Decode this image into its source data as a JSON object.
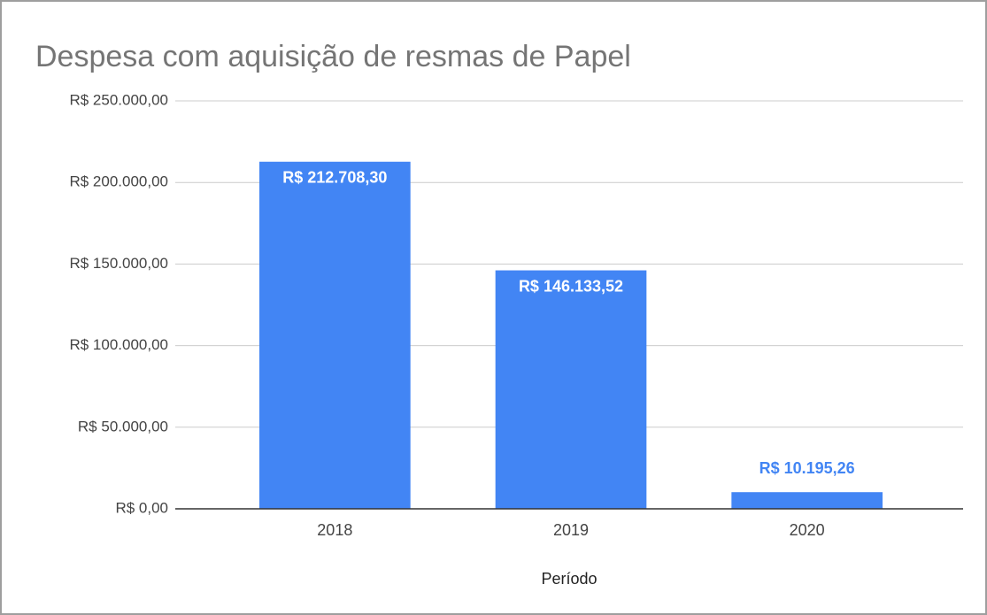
{
  "chart_data": {
    "type": "bar",
    "title": "Despesa com aquisição de resmas de Papel",
    "x_label": "Período",
    "categories": [
      "2018",
      "2019",
      "2020"
    ],
    "values": [
      212708.3,
      146133.52,
      10195.26
    ],
    "value_labels": [
      "R$ 212.708,30",
      "R$ 146.133,52",
      "R$ 10.195,26"
    ],
    "color": "#4285f4",
    "ylim": [
      0,
      250000
    ],
    "yticks": [
      {
        "value": 0,
        "label": "R$ 0,00"
      },
      {
        "value": 50000,
        "label": "R$ 50.000,00"
      },
      {
        "value": 100000,
        "label": "R$ 100.000,00"
      },
      {
        "value": 150000,
        "label": "R$ 150.000,00"
      },
      {
        "value": 200000,
        "label": "R$ 200.000,00"
      },
      {
        "value": 250000,
        "label": "R$ 250.000,00"
      }
    ],
    "grid": true
  }
}
